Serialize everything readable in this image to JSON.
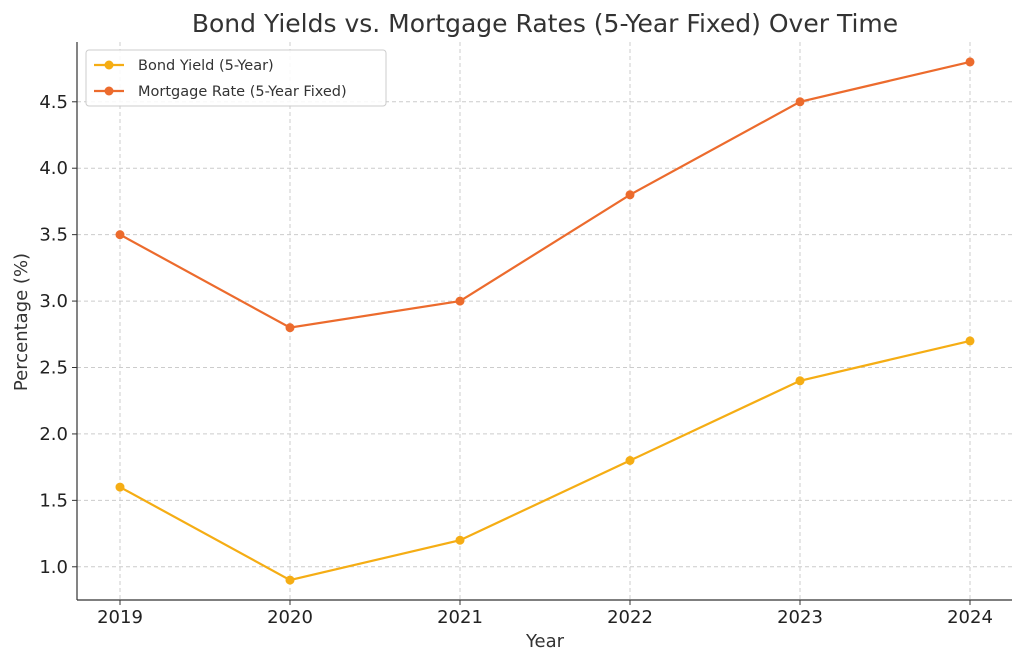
{
  "chart_data": {
    "type": "line",
    "title": "Bond Yields vs. Mortgage Rates (5-Year Fixed) Over Time",
    "xlabel": "Year",
    "ylabel": "Percentage (%)",
    "x": [
      "2019",
      "2020",
      "2021",
      "2022",
      "2023",
      "2024"
    ],
    "yticks": [
      "1.0",
      "1.5",
      "2.0",
      "2.5",
      "3.0",
      "3.5",
      "4.0",
      "4.5"
    ],
    "ylim": [
      0.75,
      4.95
    ],
    "grid": true,
    "legend_position": "upper-left",
    "series": [
      {
        "name": "Bond Yield (5-Year)",
        "color": "#f5ad14",
        "values": [
          1.6,
          0.9,
          1.2,
          1.8,
          2.4,
          2.7
        ]
      },
      {
        "name": "Mortgage Rate (5-Year Fixed)",
        "color": "#ec6b2d",
        "values": [
          3.5,
          2.8,
          3.0,
          3.8,
          4.5,
          4.8
        ]
      }
    ]
  }
}
